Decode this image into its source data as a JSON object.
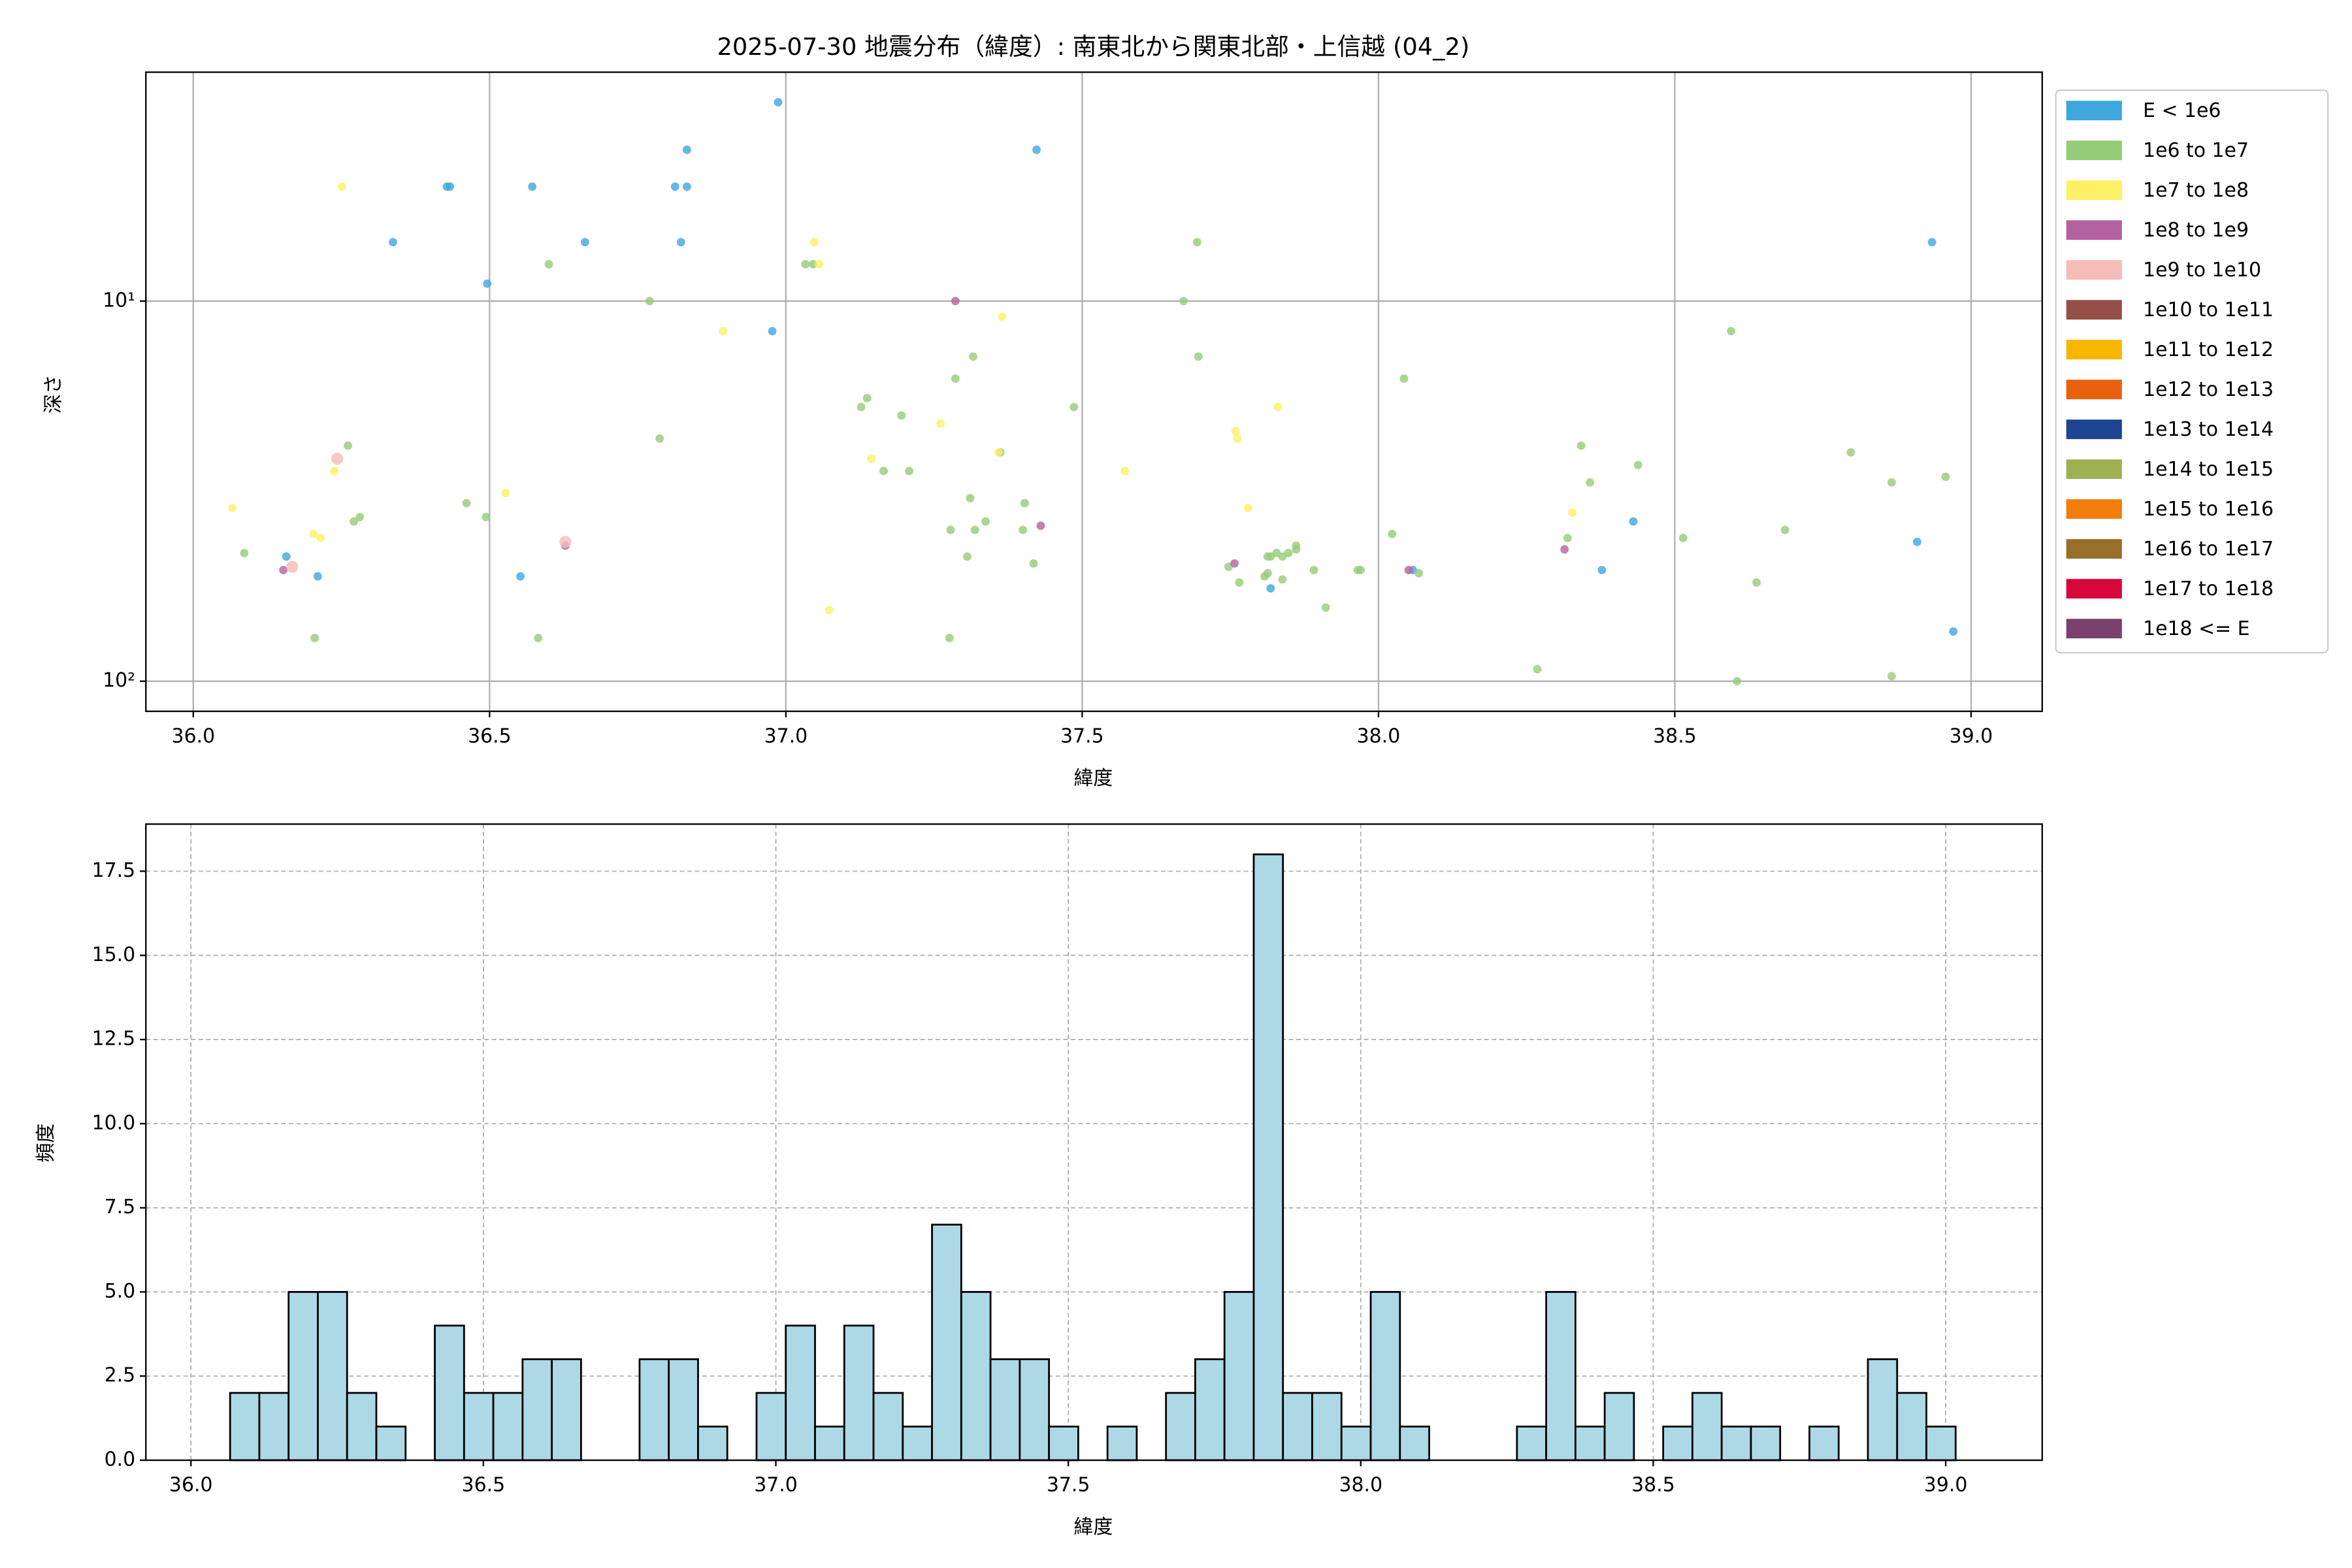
{
  "chart_data": [
    {
      "type": "scatter",
      "title": "2025-07-30 地震分布（緯度）: 南東北から関東北部・上信越 (04_2)",
      "xlabel": "緯度",
      "ylabel": "深さ",
      "xlim": [
        35.92,
        39.12
      ],
      "ylim": [
        2.5,
        120
      ],
      "yscale": "log",
      "y_inverted": true,
      "grid": true,
      "legend": "outside right",
      "xticks": [
        {
          "value": 36.0,
          "label": "36.0"
        },
        {
          "value": 36.5,
          "label": "36.5"
        },
        {
          "value": 37.0,
          "label": "37.0"
        },
        {
          "value": 37.5,
          "label": "37.5"
        },
        {
          "value": 38.0,
          "label": "38.0"
        },
        {
          "value": 38.5,
          "label": "38.5"
        },
        {
          "value": 39.0,
          "label": "39.0"
        }
      ],
      "yticks": [
        {
          "value": 10,
          "label": "10¹"
        },
        {
          "value": 100,
          "label": "10²"
        }
      ],
      "series": [
        {
          "name": "E < 1e6",
          "color": "#3fa6de",
          "x": [
            36.987,
            36.428,
            36.433,
            36.572,
            36.833,
            36.813,
            36.833,
            37.423,
            36.337,
            36.661,
            36.823,
            36.496,
            36.977,
            38.934,
            36.157,
            36.21,
            36.552,
            38.43,
            38.377,
            38.909,
            38.97,
            37.818,
            38.058
          ],
          "values": [
            3.0,
            5.0,
            5.0,
            5.0,
            4.0,
            5.0,
            5.0,
            4.0,
            7.0,
            7.0,
            7.0,
            9.0,
            12,
            7.0,
            47,
            53,
            53,
            38,
            51,
            43,
            74,
            57,
            51
          ]
        },
        {
          "name": "1e6 to 1e7",
          "color": "#93cd77",
          "x": [
            36.6,
            36.77,
            37.033,
            37.046,
            37.694,
            37.671,
            37.696,
            37.316,
            37.286,
            37.137,
            37.127,
            37.195,
            37.486,
            36.787,
            37.165,
            37.208,
            37.362,
            36.261,
            36.461,
            36.494,
            36.281,
            36.271,
            36.086,
            36.205,
            36.582,
            37.311,
            37.278,
            37.403,
            37.319,
            37.337,
            37.4,
            37.306,
            37.418,
            37.276,
            38.043,
            38.595,
            38.342,
            38.357,
            38.438,
            38.797,
            38.866,
            38.957,
            38.686,
            38.319,
            38.514,
            38.638,
            38.023,
            38.268,
            38.605,
            38.866,
            37.861,
            37.861,
            37.828,
            37.838,
            37.848,
            37.818,
            37.813,
            37.747,
            37.813,
            37.838,
            37.765,
            37.808,
            37.891,
            37.965,
            37.97,
            37.911,
            38.068
          ],
          "values": [
            8.0,
            10,
            8.0,
            8.0,
            7.0,
            10,
            14,
            14,
            16,
            18,
            19,
            20,
            19,
            23,
            28,
            28,
            25,
            24,
            34,
            37,
            37,
            38,
            46,
            77,
            77,
            33,
            40,
            34,
            40,
            38,
            40,
            47,
            49,
            77,
            16,
            12,
            24,
            30,
            27,
            25,
            30,
            29,
            40,
            42,
            42,
            55,
            41,
            93,
            100,
            97,
            44,
            45,
            46,
            47,
            46,
            47,
            47,
            50,
            52,
            54,
            55,
            53,
            51,
            51,
            51,
            64,
            52
          ]
        },
        {
          "name": "1e7 to 1e8",
          "color": "#fdf064",
          "x": [
            36.251,
            37.048,
            37.056,
            36.894,
            37.365,
            37.759,
            37.762,
            37.83,
            37.261,
            37.359,
            37.144,
            37.572,
            36.527,
            36.238,
            36.066,
            37.78,
            36.203,
            36.215,
            37.073,
            38.327
          ],
          "values": [
            5.0,
            7.0,
            8.0,
            12,
            11,
            22,
            23,
            19,
            21,
            25,
            26,
            28,
            32,
            28,
            35,
            35,
            41,
            42,
            65,
            36
          ]
        },
        {
          "name": "1e8 to 1e9",
          "color": "#b5619f",
          "x": [
            37.286,
            37.43,
            36.628,
            36.152,
            37.757,
            38.051,
            38.314
          ],
          "values": [
            10,
            39,
            44,
            51,
            49,
            51,
            45
          ]
        },
        {
          "name": "1e9 to 1e10",
          "color": "#f5bcb8",
          "x": [
            36.243,
            36.628,
            36.167
          ],
          "values": [
            26,
            43,
            50
          ]
        },
        {
          "name": "1e10 to 1e11",
          "color": "#945046",
          "x": [],
          "values": []
        },
        {
          "name": "1e11 to 1e12",
          "color": "#f8b500",
          "x": [],
          "values": []
        },
        {
          "name": "1e12 to 1e13",
          "color": "#e8610f",
          "x": [],
          "values": []
        },
        {
          "name": "1e13 to 1e14",
          "color": "#1e4592",
          "x": [],
          "values": []
        },
        {
          "name": "1e14 to 1e15",
          "color": "#9fb052",
          "x": [],
          "values": []
        },
        {
          "name": "1e15 to 1e16",
          "color": "#f27c0c",
          "x": [],
          "values": []
        },
        {
          "name": "1e16 to 1e17",
          "color": "#976e2b",
          "x": [],
          "values": []
        },
        {
          "name": "1e17 to 1e18",
          "color": "#d7073c",
          "x": [],
          "values": []
        },
        {
          "name": "1e18 <= E",
          "color": "#7a416f",
          "x": [],
          "values": []
        }
      ]
    },
    {
      "type": "histogram",
      "xlabel": "緯度",
      "ylabel": "頻度",
      "color": "#add8e6",
      "edgecolor": "#000000",
      "grid": "dashed",
      "xlim": [
        35.923,
        39.165
      ],
      "ylim": [
        0,
        18.9
      ],
      "xticks": [
        {
          "value": 36.0,
          "label": "36.0"
        },
        {
          "value": 36.5,
          "label": "36.5"
        },
        {
          "value": 37.0,
          "label": "37.0"
        },
        {
          "value": 37.5,
          "label": "37.5"
        },
        {
          "value": 38.0,
          "label": "38.0"
        },
        {
          "value": 38.5,
          "label": "38.5"
        },
        {
          "value": 39.0,
          "label": "39.0"
        }
      ],
      "yticks": [
        {
          "value": 0,
          "label": "0.0"
        },
        {
          "value": 2.5,
          "label": "2.5"
        },
        {
          "value": 5,
          "label": "5.0"
        },
        {
          "value": 7.5,
          "label": "7.5"
        },
        {
          "value": 10,
          "label": "10.0"
        },
        {
          "value": 12.5,
          "label": "12.5"
        },
        {
          "value": 15,
          "label": "15.0"
        },
        {
          "value": 17.5,
          "label": "17.5"
        }
      ],
      "bins": [
        36.067,
        36.117,
        36.167,
        36.217,
        36.267,
        36.317,
        36.367,
        36.417,
        36.467,
        36.517,
        36.567,
        36.617,
        36.667,
        36.717,
        36.767,
        36.817,
        36.867,
        36.917,
        36.967,
        37.017,
        37.067,
        37.117,
        37.167,
        37.217,
        37.267,
        37.317,
        37.367,
        37.417,
        37.467,
        37.517,
        37.567,
        37.617,
        37.667,
        37.717,
        37.767,
        37.817,
        37.867,
        37.917,
        37.967,
        38.017,
        38.067,
        38.117,
        38.167,
        38.217,
        38.267,
        38.317,
        38.367,
        38.417,
        38.467,
        38.517,
        38.567,
        38.617,
        38.667,
        38.717,
        38.767,
        38.817,
        38.867,
        38.917,
        38.967,
        39.017
      ],
      "values": [
        2,
        2,
        5,
        5,
        2,
        1,
        0,
        4,
        2,
        2,
        3,
        3,
        0,
        0,
        3,
        3,
        1,
        0,
        2,
        4,
        1,
        4,
        2,
        1,
        7,
        5,
        3,
        3,
        1,
        0,
        1,
        0,
        2,
        3,
        5,
        18,
        2,
        2,
        1,
        5,
        1,
        0,
        0,
        0,
        1,
        5,
        1,
        2,
        0,
        1,
        2,
        1,
        1,
        0,
        1,
        0,
        3,
        2,
        1
      ]
    }
  ]
}
